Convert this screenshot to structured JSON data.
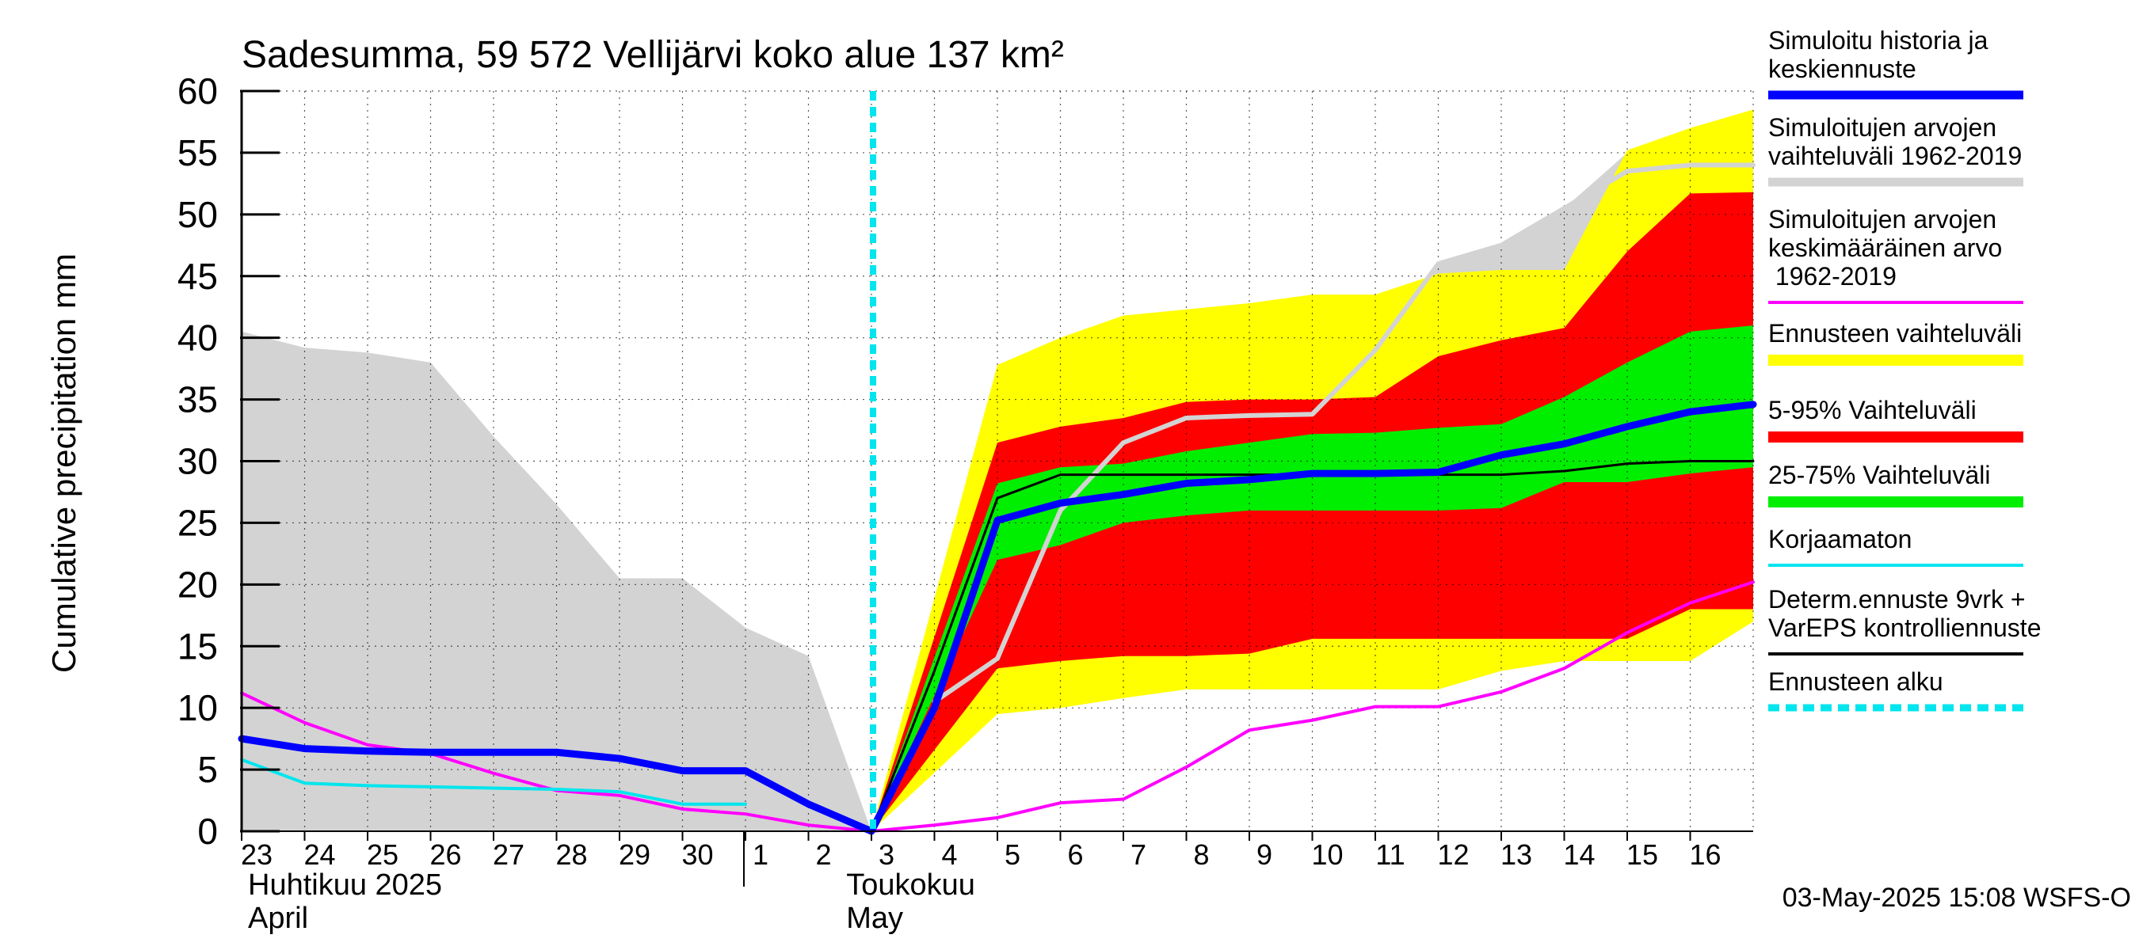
{
  "chart_data": {
    "type": "area",
    "title": "Sadesumma, 59 572 Vellijärvi koko alue 137 km²",
    "ylabel": "Cumulative precipitation   mm",
    "ylim": [
      0,
      60
    ],
    "yticks": [
      0,
      5,
      10,
      15,
      20,
      25,
      30,
      35,
      40,
      45,
      50,
      55,
      60
    ],
    "xlim": [
      0,
      24
    ],
    "x_tick_labels": [
      {
        "x": 0,
        "label": "23"
      },
      {
        "x": 1,
        "label": "24"
      },
      {
        "x": 2,
        "label": "25"
      },
      {
        "x": 3,
        "label": "26"
      },
      {
        "x": 4,
        "label": "27"
      },
      {
        "x": 5,
        "label": "28"
      },
      {
        "x": 6,
        "label": "29"
      },
      {
        "x": 7,
        "label": "30"
      },
      {
        "x": 8,
        "label": "1"
      },
      {
        "x": 9,
        "label": "2"
      },
      {
        "x": 10,
        "label": "3"
      },
      {
        "x": 11,
        "label": "4"
      },
      {
        "x": 12,
        "label": "5"
      },
      {
        "x": 13,
        "label": "6"
      },
      {
        "x": 14,
        "label": "7"
      },
      {
        "x": 15,
        "label": "8"
      },
      {
        "x": 16,
        "label": "9"
      },
      {
        "x": 17,
        "label": "10"
      },
      {
        "x": 18,
        "label": "11"
      },
      {
        "x": 19,
        "label": "12"
      },
      {
        "x": 20,
        "label": "13"
      },
      {
        "x": 21,
        "label": "14"
      },
      {
        "x": 22,
        "label": "15"
      },
      {
        "x": 23,
        "label": "16"
      }
    ],
    "month_labels": [
      {
        "x": 0,
        "line1": "Huhtikuu  2025",
        "line2": "April"
      },
      {
        "x": 9.5,
        "line1": "Toukokuu",
        "line2": "May"
      }
    ],
    "month_separator_x": 8,
    "forecast_start_x": 10,
    "historical_range": {
      "x": [
        0,
        1,
        2,
        3,
        4,
        5,
        6,
        7,
        8,
        9,
        10,
        11,
        12,
        13,
        14,
        15,
        16,
        17,
        18,
        19,
        20,
        21,
        22,
        23,
        24
      ],
      "upper": [
        40.5,
        39.2,
        38.8,
        38,
        32,
        26.5,
        20.5,
        20.5,
        16.5,
        14.2,
        0,
        10,
        18,
        25,
        31.5,
        33.5,
        33.7,
        33.8,
        39,
        46,
        47.5,
        50.5,
        55,
        55.5,
        55.5
      ],
      "lower": [
        0,
        0,
        0,
        0,
        0,
        0,
        0,
        0,
        0,
        0,
        0,
        5.5,
        9.5,
        10,
        10.8,
        11.5,
        11.5,
        11.5,
        11.5,
        11.5,
        13,
        13.8,
        13.8,
        13.8,
        17
      ]
    },
    "forecast_bands": {
      "x": [
        10,
        12,
        13,
        14,
        15,
        16,
        17,
        18,
        19,
        20,
        21,
        22,
        23,
        24
      ],
      "full": {
        "upper": [
          0,
          37.8,
          40,
          41.8,
          42.3,
          42.8,
          43.5,
          43.5,
          45.2,
          45.5,
          45.5,
          55.2,
          57,
          58.5
        ],
        "lower": [
          0,
          9.5,
          10,
          10.8,
          11.5,
          11.5,
          11.5,
          11.5,
          11.5,
          13,
          13.8,
          13.8,
          13.8,
          17
        ]
      },
      "p5_95": {
        "upper": [
          0,
          31.5,
          32.8,
          33.5,
          34.8,
          35,
          35,
          35.2,
          38.5,
          39.8,
          40.8,
          47,
          51.7,
          51.8
        ],
        "lower": [
          0,
          13.2,
          13.8,
          14.2,
          14.2,
          14.4,
          15.6,
          15.6,
          15.6,
          15.6,
          15.6,
          15.6,
          18,
          18
        ]
      },
      "p25_75": {
        "upper": [
          0,
          28.2,
          29.5,
          29.8,
          30.8,
          31.5,
          32.2,
          32.3,
          32.7,
          33,
          35.2,
          38,
          40.5,
          41
        ],
        "lower": [
          0,
          22,
          23.2,
          25,
          25.6,
          26,
          26,
          26,
          26,
          26.2,
          28.3,
          28.3,
          29,
          29.5
        ]
      }
    },
    "series": [
      {
        "name": "Simuloitu historia ja keskiennuste",
        "color": "#0000ff",
        "x": [
          0,
          1,
          2,
          3,
          4,
          5,
          6,
          7,
          8,
          9,
          10,
          11,
          12,
          13,
          14,
          15,
          16,
          17,
          18,
          19,
          20,
          21,
          22,
          23,
          24
        ],
        "y": [
          7.5,
          6.7,
          6.5,
          6.4,
          6.4,
          6.4,
          5.9,
          4.9,
          4.9,
          2.2,
          0,
          10,
          25.2,
          26.6,
          27.3,
          28.2,
          28.5,
          29,
          29,
          29.1,
          30.5,
          31.4,
          32.8,
          34,
          34.6
        ]
      },
      {
        "name": "Simuloitujen arvojen keskimääräinen arvo 1962-2019",
        "color": "#ff00ff",
        "x": [
          0,
          1,
          2,
          3,
          4,
          5,
          6,
          7,
          8,
          9,
          10,
          11,
          12,
          13,
          14,
          15,
          16,
          17,
          18,
          19,
          20,
          21,
          22,
          23,
          24
        ],
        "y": [
          11.2,
          8.8,
          7,
          6.3,
          4.7,
          3.3,
          2.9,
          1.8,
          1.4,
          0.5,
          0,
          0.5,
          1.1,
          2.3,
          2.6,
          5.2,
          8.2,
          9,
          10.1,
          10.1,
          11.3,
          13.2,
          16.1,
          18.5,
          20.2
        ]
      },
      {
        "name": "Korjaamaton",
        "color": "#00e5ee",
        "x": [
          0,
          1,
          2,
          3,
          4,
          5,
          6,
          7,
          8
        ],
        "y": [
          5.8,
          3.9,
          3.7,
          3.6,
          3.5,
          3.4,
          3.2,
          2.2,
          2.2
        ]
      },
      {
        "name": "Determ.ennuste 9vrk + VarEPS kontrolliennuste",
        "color": "#000000",
        "x": [
          10,
          11,
          12,
          13,
          14,
          15,
          16,
          17,
          18,
          19,
          20,
          21,
          22,
          23,
          24
        ],
        "y": [
          0,
          13,
          27,
          28.9,
          28.9,
          28.9,
          28.9,
          28.9,
          28.9,
          28.9,
          28.9,
          29.2,
          29.8,
          30,
          30
        ]
      },
      {
        "name": "Simuloitujen arvojen vaihteluväli 1962-2019 (yläraja)",
        "color": "#d3d3d3",
        "x": [
          11,
          12,
          13,
          14,
          15,
          16,
          17,
          18,
          19,
          20,
          21,
          22,
          23,
          24
        ],
        "y": [
          10.5,
          14,
          26,
          31.5,
          33.5,
          33.7,
          33.8,
          39,
          46,
          47.5,
          50.5,
          53.5,
          54,
          54
        ]
      }
    ]
  },
  "legend": [
    {
      "label": "Simuloitu historia ja keskiennuste",
      "color": "#0000ff",
      "style": "thick"
    },
    {
      "label": "Simuloitujen arvojen vaihteluväli 1962-2019",
      "color": "#d3d3d3",
      "style": "thick"
    },
    {
      "label": "Simuloitujen arvojen keskimääräinen arvo 1962-2019",
      "color": "#ff00ff",
      "style": "thin"
    },
    {
      "label": "Ennusteen vaihteluväli",
      "color": "#ffff00",
      "style": "box"
    },
    {
      "label": "5-95% Vaihteluväli",
      "color": "#ff0000",
      "style": "box"
    },
    {
      "label": "25-75% Vaihteluväli",
      "color": "#00ee00",
      "style": "box"
    },
    {
      "label": "Korjaamaton",
      "color": "#00e5ee",
      "style": "thin"
    },
    {
      "label": "Determ.ennuste 9vrk + VarEPS kontrolliennuste",
      "color": "#000000",
      "style": "thin"
    },
    {
      "label": "Ennusteen alku",
      "color": "#00e5ee",
      "style": "dashed"
    }
  ],
  "footer": "03-May-2025 15:08 WSFS-O"
}
